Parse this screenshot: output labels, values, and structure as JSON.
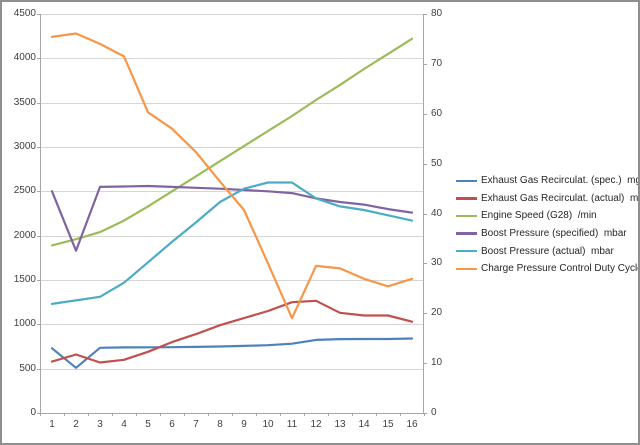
{
  "window": {
    "kind": "excel-style line chart screenshot",
    "title": ""
  },
  "chart_data": {
    "type": "line",
    "title": "",
    "xlabel": "",
    "ylabel_left": "",
    "ylabel_right": "",
    "grid": true,
    "legend_position": "right",
    "x": [
      1,
      2,
      3,
      4,
      5,
      6,
      7,
      8,
      9,
      10,
      11,
      12,
      13,
      14,
      15,
      16
    ],
    "x_ticks": [
      "1",
      "2",
      "3",
      "4",
      "5",
      "6",
      "7",
      "8",
      "9",
      "10",
      "11",
      "12",
      "13",
      "14",
      "15",
      "16"
    ],
    "y_left": {
      "min": 0,
      "max": 4500,
      "step": 500,
      "ticks": [
        "4500",
        "4000",
        "3500",
        "3000",
        "2500",
        "2000",
        "1500",
        "1000",
        "500",
        "0"
      ]
    },
    "y_right": {
      "min": 0,
      "max": 80,
      "step": 10,
      "ticks": [
        "80",
        "70",
        "60",
        "50",
        "40",
        "30",
        "20",
        "10",
        "0"
      ]
    },
    "series": [
      {
        "name": "Exhaust Gas Recirculat. (spec.)  mg/str",
        "color": "#4F81BD",
        "axis": "left",
        "values": [
          730,
          510,
          735,
          740,
          741,
          742,
          746,
          750,
          757,
          765,
          782,
          825,
          833,
          835,
          835,
          840
        ]
      },
      {
        "name": "Exhaust Gas Recirculat. (actual)  mg/str",
        "color": "#C0504D",
        "axis": "left",
        "values": [
          580,
          660,
          570,
          600,
          690,
          800,
          890,
          990,
          1070,
          1150,
          1250,
          1265,
          1130,
          1100,
          1100,
          1030
        ]
      },
      {
        "name": "Engine Speed (G28)  /min",
        "color": "#9BBB59",
        "axis": "left",
        "values": [
          1890,
          1960,
          2040,
          2170,
          2330,
          2500,
          2670,
          2840,
          3010,
          3180,
          3350,
          3530,
          3700,
          3880,
          4050,
          4220
        ]
      },
      {
        "name": "Boost Pressure (specified)  mbar",
        "color": "#8064A2",
        "axis": "left",
        "values": [
          2500,
          1830,
          2550,
          2555,
          2560,
          2550,
          2540,
          2530,
          2515,
          2500,
          2480,
          2420,
          2380,
          2350,
          2300,
          2260
        ]
      },
      {
        "name": "Boost Pressure (actual)  mbar",
        "color": "#4BACC6",
        "axis": "left",
        "values": [
          1230,
          1270,
          1310,
          1470,
          1700,
          1930,
          2150,
          2380,
          2530,
          2600,
          2600,
          2420,
          2330,
          2290,
          2230,
          2170
        ]
      },
      {
        "name": "Charge Pressure Control Duty Cycle  %",
        "color": "#F79646",
        "axis": "right",
        "values": [
          75.4,
          76.1,
          74,
          71.5,
          60.3,
          57,
          52.3,
          46.4,
          40.7,
          30,
          19,
          29.5,
          29,
          26.9,
          25.4,
          26.9
        ]
      }
    ],
    "colors": {
      "gridline": "#D6D6D6",
      "axis_line": "#A6A6A6",
      "tick": "#A6A6A6",
      "axis_text": "#3F3F3F",
      "legend_text": "#262626",
      "background": "#FFFFFF",
      "frame_border": "#8F8F8F"
    }
  }
}
